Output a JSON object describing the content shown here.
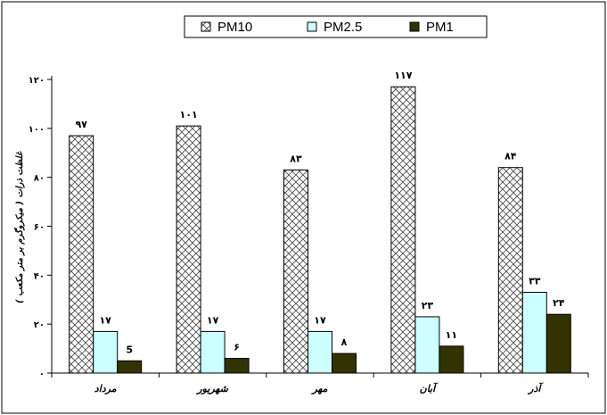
{
  "chart_data": {
    "type": "bar",
    "categories": [
      "مرداد",
      "شهریور",
      "مهر",
      "آبان",
      "آذر"
    ],
    "series": [
      {
        "name": "PM10",
        "values": [
          97,
          101,
          83,
          117,
          84
        ],
        "labels": [
          "۹۷",
          "۱۰۱",
          "۸۳",
          "۱۱۷",
          "۸۴"
        ],
        "color": "#ffffff",
        "pattern": "crosshatch"
      },
      {
        "name": "PM2.5",
        "values": [
          17,
          17,
          17,
          23,
          33
        ],
        "labels": [
          "۱۷",
          "۱۷",
          "۱۷",
          "۲۳",
          "۳۳"
        ],
        "color": "#ccffff"
      },
      {
        "name": "PM1",
        "values": [
          5,
          6,
          8,
          11,
          24
        ],
        "labels": [
          "5",
          "۶",
          "۸",
          "۱۱",
          "۲۴"
        ],
        "color": "#333300"
      }
    ],
    "ylim": [
      0,
      120
    ],
    "yticks": [
      0,
      20,
      40,
      60,
      80,
      100,
      120
    ],
    "ytick_labels": [
      "۰",
      "۲۰",
      "۴۰",
      "۶۰",
      "۸۰",
      "۱۰۰",
      "۱۲۰"
    ],
    "ylabel": "غلظت ذرات ( میکروگرم بر متر مکعب )",
    "xlabel": "",
    "legend_position": "top-center",
    "grid": false
  }
}
